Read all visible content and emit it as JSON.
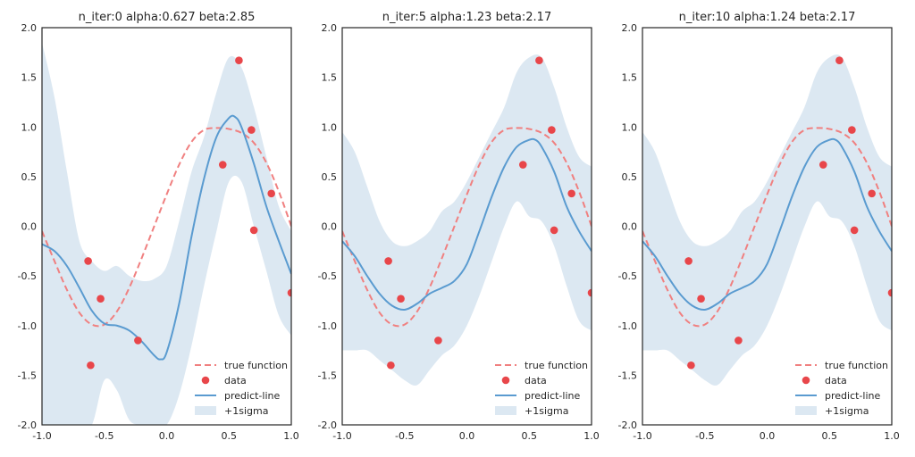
{
  "colors": {
    "true_function": "#f08080",
    "data": "#e8464a",
    "predict": "#5a9bd0",
    "sigma": "#dce8f2",
    "axes": "#262626",
    "background": "#ffffff"
  },
  "legend": {
    "position": "lower-right",
    "labels": [
      "true function",
      "data",
      "predict-line",
      "+1sigma"
    ]
  },
  "chart_data": [
    {
      "type": "line",
      "title": "n_iter:0 alpha:0.627 beta:2.85",
      "xlim": [
        -1.0,
        1.0
      ],
      "ylim": [
        -2.0,
        2.0
      ],
      "xticks": [
        "-1.0",
        "-0.5",
        "0.0",
        "0.5",
        "1.0"
      ],
      "yticks": [
        "2.0",
        "1.5",
        "1.0",
        "0.5",
        "0.0",
        "-0.5",
        "-1.0",
        "-1.5",
        "-2.0"
      ],
      "data_points": {
        "x": [
          -0.63,
          -0.61,
          -0.53,
          -0.23,
          0.45,
          0.58,
          0.68,
          0.7,
          0.84,
          1.0
        ],
        "y": [
          -0.35,
          -1.4,
          -0.73,
          -1.15,
          0.62,
          1.67,
          0.97,
          -0.04,
          0.33,
          -0.67
        ]
      },
      "series": [
        {
          "name": "true function",
          "x": [
            -1.0,
            -0.9,
            -0.8,
            -0.7,
            -0.6,
            -0.5,
            -0.4,
            -0.3,
            -0.2,
            -0.1,
            0.0,
            0.1,
            0.2,
            0.3,
            0.4,
            0.5,
            0.6,
            0.7,
            0.8,
            0.9,
            1.0
          ],
          "y": [
            -0.05,
            -0.35,
            -0.64,
            -0.87,
            -0.99,
            -0.99,
            -0.86,
            -0.62,
            -0.32,
            0.0,
            0.32,
            0.62,
            0.85,
            0.97,
            0.99,
            0.98,
            0.94,
            0.84,
            0.64,
            0.35,
            0.0
          ]
        },
        {
          "name": "predict-line",
          "x": [
            -1.0,
            -0.9,
            -0.8,
            -0.7,
            -0.6,
            -0.5,
            -0.4,
            -0.3,
            -0.2,
            -0.1,
            -0.05,
            0.0,
            0.1,
            0.2,
            0.3,
            0.4,
            0.5,
            0.55,
            0.6,
            0.7,
            0.8,
            0.9,
            1.0
          ],
          "y": [
            -0.18,
            -0.25,
            -0.4,
            -0.62,
            -0.85,
            -0.98,
            -1.0,
            -1.05,
            -1.16,
            -1.3,
            -1.34,
            -1.27,
            -0.78,
            -0.1,
            0.48,
            0.9,
            1.09,
            1.1,
            1.0,
            0.63,
            0.2,
            -0.15,
            -0.48
          ]
        },
        {
          "name": "+1sigma",
          "x": [
            -1.0,
            -0.9,
            -0.8,
            -0.7,
            -0.6,
            -0.5,
            -0.4,
            -0.3,
            -0.2,
            -0.1,
            0.0,
            0.1,
            0.2,
            0.3,
            0.4,
            0.5,
            0.6,
            0.7,
            0.8,
            0.9,
            1.0
          ],
          "upper": [
            1.85,
            1.3,
            0.55,
            -0.15,
            -0.35,
            -0.45,
            -0.4,
            -0.5,
            -0.55,
            -0.53,
            -0.4,
            0.05,
            0.55,
            0.9,
            1.35,
            1.7,
            1.6,
            1.2,
            0.7,
            0.2,
            -0.05
          ],
          "lower": [
            -2.0,
            -2.0,
            -2.0,
            -2.0,
            -2.0,
            -1.55,
            -1.65,
            -1.95,
            -2.0,
            -2.0,
            -2.0,
            -1.7,
            -1.2,
            -0.6,
            -0.05,
            0.45,
            0.45,
            0.0,
            -0.45,
            -0.9,
            -1.1
          ]
        }
      ]
    },
    {
      "type": "line",
      "title": "n_iter:5 alpha:1.23 beta:2.17",
      "xlim": [
        -1.0,
        1.0
      ],
      "ylim": [
        -2.0,
        2.0
      ],
      "xticks": [
        "-1.0",
        "-0.5",
        "0.0",
        "0.5",
        "1.0"
      ],
      "yticks": [
        "2.0",
        "1.5",
        "1.0",
        "0.5",
        "0.0",
        "-0.5",
        "-1.0",
        "-1.5",
        "-2.0"
      ],
      "data_points": {
        "x": [
          -0.63,
          -0.61,
          -0.53,
          -0.23,
          0.45,
          0.58,
          0.68,
          0.7,
          0.84,
          1.0
        ],
        "y": [
          -0.35,
          -1.4,
          -0.73,
          -1.15,
          0.62,
          1.67,
          0.97,
          -0.04,
          0.33,
          -0.67
        ]
      },
      "series": [
        {
          "name": "true function",
          "x": [
            -1.0,
            -0.9,
            -0.8,
            -0.7,
            -0.6,
            -0.5,
            -0.4,
            -0.3,
            -0.2,
            -0.1,
            0.0,
            0.1,
            0.2,
            0.3,
            0.4,
            0.5,
            0.6,
            0.7,
            0.8,
            0.9,
            1.0
          ],
          "y": [
            -0.05,
            -0.35,
            -0.64,
            -0.87,
            -0.99,
            -0.99,
            -0.86,
            -0.62,
            -0.32,
            0.0,
            0.32,
            0.62,
            0.85,
            0.97,
            0.99,
            0.98,
            0.94,
            0.84,
            0.64,
            0.35,
            0.0
          ]
        },
        {
          "name": "predict-line",
          "x": [
            -1.0,
            -0.9,
            -0.8,
            -0.7,
            -0.6,
            -0.5,
            -0.4,
            -0.3,
            -0.2,
            -0.1,
            0.0,
            0.1,
            0.2,
            0.3,
            0.4,
            0.5,
            0.55,
            0.6,
            0.7,
            0.8,
            0.9,
            1.0
          ],
          "y": [
            -0.15,
            -0.3,
            -0.5,
            -0.68,
            -0.8,
            -0.84,
            -0.78,
            -0.68,
            -0.62,
            -0.55,
            -0.38,
            -0.05,
            0.3,
            0.6,
            0.8,
            0.87,
            0.87,
            0.8,
            0.55,
            0.2,
            -0.05,
            -0.25
          ]
        },
        {
          "name": "+1sigma",
          "x": [
            -1.0,
            -0.9,
            -0.8,
            -0.7,
            -0.6,
            -0.5,
            -0.4,
            -0.3,
            -0.2,
            -0.1,
            0.0,
            0.1,
            0.2,
            0.3,
            0.4,
            0.5,
            0.6,
            0.7,
            0.8,
            0.9,
            1.0
          ],
          "upper": [
            0.95,
            0.75,
            0.4,
            0.05,
            -0.15,
            -0.2,
            -0.15,
            -0.05,
            0.15,
            0.25,
            0.45,
            0.7,
            0.95,
            1.2,
            1.55,
            1.7,
            1.7,
            1.4,
            1.0,
            0.7,
            0.6
          ],
          "lower": [
            -1.25,
            -1.25,
            -1.25,
            -1.35,
            -1.45,
            -1.55,
            -1.6,
            -1.45,
            -1.3,
            -1.2,
            -1.0,
            -0.7,
            -0.35,
            0.0,
            0.25,
            0.1,
            0.05,
            -0.2,
            -0.6,
            -0.95,
            -1.05
          ]
        }
      ]
    },
    {
      "type": "line",
      "title": "n_iter:10 alpha:1.24 beta:2.17",
      "xlim": [
        -1.0,
        1.0
      ],
      "ylim": [
        -2.0,
        2.0
      ],
      "xticks": [
        "-1.0",
        "-0.5",
        "0.0",
        "0.5",
        "1.0"
      ],
      "yticks": [
        "2.0",
        "1.5",
        "1.0",
        "0.5",
        "0.0",
        "-0.5",
        "-1.0",
        "-1.5",
        "-2.0"
      ],
      "data_points": {
        "x": [
          -0.63,
          -0.61,
          -0.53,
          -0.23,
          0.45,
          0.58,
          0.68,
          0.7,
          0.84,
          1.0
        ],
        "y": [
          -0.35,
          -1.4,
          -0.73,
          -1.15,
          0.62,
          1.67,
          0.97,
          -0.04,
          0.33,
          -0.67
        ]
      },
      "series": [
        {
          "name": "true function",
          "x": [
            -1.0,
            -0.9,
            -0.8,
            -0.7,
            -0.6,
            -0.5,
            -0.4,
            -0.3,
            -0.2,
            -0.1,
            0.0,
            0.1,
            0.2,
            0.3,
            0.4,
            0.5,
            0.6,
            0.7,
            0.8,
            0.9,
            1.0
          ],
          "y": [
            -0.05,
            -0.35,
            -0.64,
            -0.87,
            -0.99,
            -0.99,
            -0.86,
            -0.62,
            -0.32,
            0.0,
            0.32,
            0.62,
            0.85,
            0.97,
            0.99,
            0.98,
            0.94,
            0.84,
            0.64,
            0.35,
            0.0
          ]
        },
        {
          "name": "predict-line",
          "x": [
            -1.0,
            -0.9,
            -0.8,
            -0.7,
            -0.6,
            -0.5,
            -0.4,
            -0.3,
            -0.2,
            -0.1,
            0.0,
            0.1,
            0.2,
            0.3,
            0.4,
            0.5,
            0.55,
            0.6,
            0.7,
            0.8,
            0.9,
            1.0
          ],
          "y": [
            -0.15,
            -0.3,
            -0.5,
            -0.68,
            -0.8,
            -0.84,
            -0.78,
            -0.68,
            -0.62,
            -0.55,
            -0.38,
            -0.05,
            0.3,
            0.6,
            0.8,
            0.87,
            0.87,
            0.8,
            0.55,
            0.2,
            -0.05,
            -0.25
          ]
        },
        {
          "name": "+1sigma",
          "x": [
            -1.0,
            -0.9,
            -0.8,
            -0.7,
            -0.6,
            -0.5,
            -0.4,
            -0.3,
            -0.2,
            -0.1,
            0.0,
            0.1,
            0.2,
            0.3,
            0.4,
            0.5,
            0.6,
            0.7,
            0.8,
            0.9,
            1.0
          ],
          "upper": [
            0.95,
            0.75,
            0.4,
            0.05,
            -0.15,
            -0.2,
            -0.15,
            -0.05,
            0.15,
            0.25,
            0.45,
            0.7,
            0.95,
            1.2,
            1.55,
            1.7,
            1.7,
            1.4,
            1.0,
            0.7,
            0.6
          ],
          "lower": [
            -1.25,
            -1.25,
            -1.25,
            -1.35,
            -1.45,
            -1.55,
            -1.6,
            -1.45,
            -1.3,
            -1.2,
            -1.0,
            -0.7,
            -0.35,
            0.0,
            0.25,
            0.1,
            0.05,
            -0.2,
            -0.6,
            -0.95,
            -1.05
          ]
        }
      ]
    }
  ]
}
